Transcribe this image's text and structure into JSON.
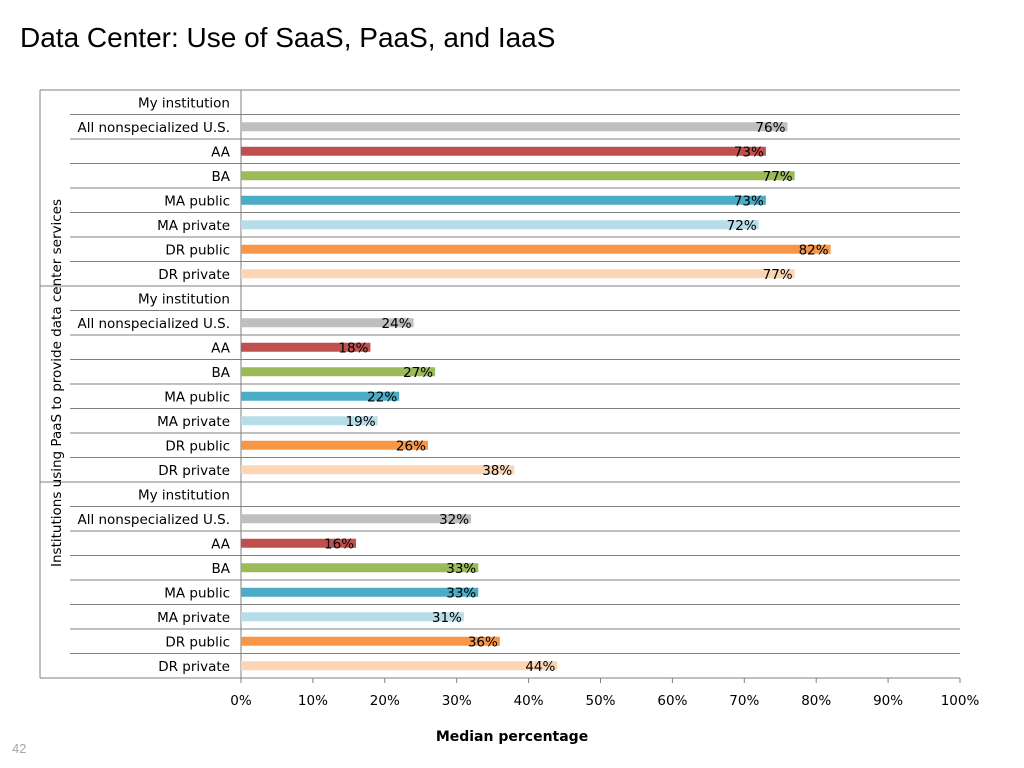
{
  "slide": {
    "title": "Data Center: Use of SaaS, PaaS, and IaaS",
    "page_number": "42"
  },
  "chart_data": {
    "type": "bar",
    "orientation": "horizontal",
    "xlabel": "Median percentage",
    "ylabel": "Institutions using PaaS to provide data center services",
    "xlim": [
      0,
      100
    ],
    "x_ticks": [
      "0%",
      "10%",
      "20%",
      "30%",
      "40%",
      "50%",
      "60%",
      "70%",
      "80%",
      "90%",
      "100%"
    ],
    "value_suffix": "%",
    "grid": "horizontal separators between categories",
    "categories": [
      "My institution",
      "All nonspecialized U.S.",
      "AA",
      "BA",
      "MA public",
      "MA private",
      "DR public",
      "DR private"
    ],
    "colors": {
      "My institution": "#ffffff",
      "All nonspecialized U.S.": "#bfbfbf",
      "AA": "#c0504d",
      "BA": "#9bbb59",
      "MA public": "#4bacc6",
      "MA private": "#b7dde8",
      "DR public": "#f79646",
      "DR private": "#fcd5b5"
    },
    "groups": [
      {
        "values": [
          null,
          76,
          73,
          77,
          73,
          72,
          82,
          77
        ]
      },
      {
        "values": [
          null,
          24,
          18,
          27,
          22,
          19,
          26,
          38
        ]
      },
      {
        "values": [
          null,
          32,
          16,
          33,
          33,
          31,
          36,
          44
        ]
      }
    ]
  }
}
